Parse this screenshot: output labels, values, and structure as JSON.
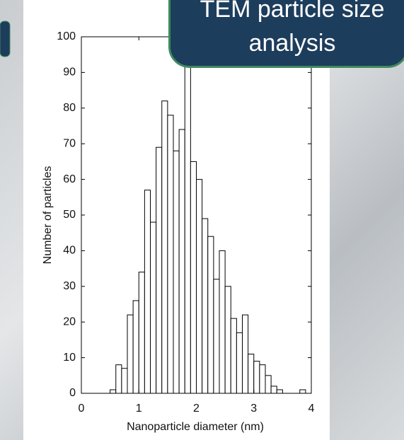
{
  "chart_data": {
    "type": "histogram",
    "title": "TEM particle size analysis",
    "xlabel": "Nanoparticle diameter (nm)",
    "ylabel": "Number of particles",
    "bins": [
      0.5,
      0.6,
      0.7,
      0.8,
      0.9,
      1.0,
      1.1,
      1.2,
      1.3,
      1.4,
      1.5,
      1.6,
      1.7,
      1.8,
      1.9,
      2.0,
      2.1,
      2.2,
      2.3,
      2.4,
      2.5,
      2.6,
      2.7,
      2.8,
      2.9,
      3.0,
      3.1,
      3.2,
      3.3,
      3.4,
      3.5,
      3.6,
      3.7,
      3.8,
      3.9,
      4.0
    ],
    "counts": [
      1,
      8,
      7,
      22,
      26,
      34,
      57,
      48,
      69,
      82,
      78,
      68,
      74,
      95,
      65,
      60,
      49,
      44,
      32,
      40,
      30,
      21,
      17,
      22,
      11,
      9,
      8,
      5,
      2,
      1,
      0,
      0,
      0,
      1,
      0
    ],
    "color": "#ffffff",
    "xlim": [
      0,
      4
    ],
    "xticks": [
      0,
      1,
      2,
      3,
      4
    ],
    "ylim": [
      0,
      100
    ],
    "yticks": [
      0,
      10,
      20,
      30,
      40,
      50,
      60,
      70,
      80,
      90,
      100
    ]
  }
}
